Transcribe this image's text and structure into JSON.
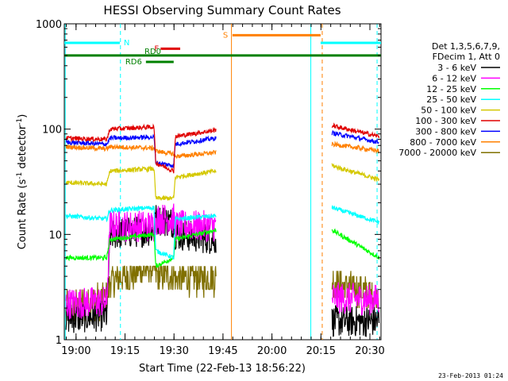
{
  "chart_data": {
    "type": "line",
    "title": "HESSI Observing Summary Count Rates",
    "xlabel": "Start Time (22-Feb-13 18:56:22)",
    "ylabel": "Count Rate (s⁻¹ detector⁻¹)",
    "ylabel_parts": {
      "main": "Count Rate (s",
      "sup1": "-1",
      "mid": " detector",
      "sup2": "-1",
      "end": ")"
    },
    "yscale": "log",
    "ylim": [
      1,
      1000
    ],
    "xlim_minutes": [
      0,
      97
    ],
    "x_ticks": [
      {
        "label": "19:00",
        "t": 3.6
      },
      {
        "label": "19:15",
        "t": 18.6
      },
      {
        "label": "19:30",
        "t": 33.6
      },
      {
        "label": "19:45",
        "t": 48.6
      },
      {
        "label": "20:00",
        "t": 63.6
      },
      {
        "label": "20:15",
        "t": 78.6
      },
      {
        "label": "20:30",
        "t": 93.6
      }
    ],
    "y_ticks": [
      {
        "label": "1",
        "v": 1
      },
      {
        "label": "10",
        "v": 10
      },
      {
        "label": "100",
        "v": 100
      },
      {
        "label": "1000",
        "v": 1000
      }
    ],
    "legend_header": [
      "Det 1,3,5,6,7,9,",
      "FDecim 1, Att 0"
    ],
    "series": [
      {
        "name": "3 - 6 keV",
        "color": "#000000"
      },
      {
        "name": "6 - 12 keV",
        "color": "#ff00ff"
      },
      {
        "name": "12 - 25 keV",
        "color": "#00ff00"
      },
      {
        "name": "25 - 50 keV",
        "color": "#00ffff"
      },
      {
        "name": "50 - 100 keV",
        "color": "#d4c800"
      },
      {
        "name": "100 - 300 keV",
        "color": "#e00000"
      },
      {
        "name": "300 - 800 keV",
        "color": "#0000ff"
      },
      {
        "name": "800 - 7000 keV",
        "color": "#ff8000"
      },
      {
        "name": "7000 - 20000 keV",
        "color": "#807000"
      }
    ],
    "segments": [
      {
        "t0": 0.5,
        "t1": 46.5
      },
      {
        "t0": 82.0,
        "t1": 96.5
      }
    ],
    "flags": [
      {
        "label": "N",
        "t0": 0,
        "t1": 17,
        "v": 660,
        "color": "#00ffff"
      },
      {
        "label": "F",
        "t0": 29.5,
        "t1": 35.5,
        "v": 580,
        "color": "#e00000"
      },
      {
        "label": "RD0",
        "t0": 0,
        "t1": 97,
        "v": 500,
        "color": "#008000"
      },
      {
        "label": "RD6",
        "t0": 25,
        "t1": 33.5,
        "v": 435,
        "color": "#008000"
      },
      {
        "label": "S",
        "t0": 51.5,
        "t1": 78.5,
        "v": 780,
        "color": "#ff8000"
      },
      {
        "label": "",
        "t0": 78.5,
        "t1": 97,
        "v": 660,
        "color": "#00ffff"
      }
    ],
    "vertical_markers": [
      {
        "t": 0.3,
        "color": "#00ffff",
        "style": "solid"
      },
      {
        "t": 17.2,
        "color": "#00ffff",
        "style": "dashed"
      },
      {
        "t": 51.2,
        "color": "#ff8000",
        "style": "solid"
      },
      {
        "t": 75.5,
        "color": "#00ffff",
        "style": "solid"
      },
      {
        "t": 79.0,
        "color": "#ff8000",
        "style": "dashed"
      },
      {
        "t": 95.8,
        "color": "#00ffff",
        "style": "dashed"
      }
    ],
    "levels": {
      "100 - 300 keV": [
        [
          0.5,
          82
        ],
        [
          13,
          80
        ],
        [
          14,
          100
        ],
        [
          27.5,
          105
        ],
        [
          28,
          48
        ],
        [
          33.5,
          40
        ],
        [
          34,
          85
        ],
        [
          46.5,
          98
        ],
        [
          82,
          108
        ],
        [
          96.5,
          85
        ]
      ],
      "300 - 800 keV": [
        [
          0.5,
          75
        ],
        [
          13,
          72
        ],
        [
          14,
          82
        ],
        [
          27.5,
          84
        ],
        [
          28,
          48
        ],
        [
          33.5,
          45
        ],
        [
          34,
          72
        ],
        [
          46.5,
          82
        ],
        [
          82,
          92
        ],
        [
          96.5,
          75
        ]
      ],
      "800 - 7000 keV": [
        [
          0.5,
          68
        ],
        [
          13,
          65
        ],
        [
          14,
          68
        ],
        [
          27.5,
          66
        ],
        [
          28,
          62
        ],
        [
          33.5,
          58
        ],
        [
          34,
          55
        ],
        [
          46.5,
          60
        ],
        [
          82,
          72
        ],
        [
          96.5,
          62
        ]
      ],
      "50 - 100 keV": [
        [
          0.5,
          31
        ],
        [
          13,
          30
        ],
        [
          14,
          40
        ],
        [
          27.5,
          42
        ],
        [
          28,
          22
        ],
        [
          33.5,
          22
        ],
        [
          34,
          35
        ],
        [
          46.5,
          40
        ],
        [
          82,
          45
        ],
        [
          96.5,
          33
        ]
      ],
      "25 - 50 keV": [
        [
          0.5,
          15
        ],
        [
          13,
          14
        ],
        [
          14,
          17
        ],
        [
          27.5,
          18
        ],
        [
          28,
          7
        ],
        [
          33.5,
          6
        ],
        [
          34,
          14
        ],
        [
          46.5,
          15
        ],
        [
          82,
          18
        ],
        [
          96.5,
          13
        ]
      ],
      "12 - 25 keV": [
        [
          0.5,
          6
        ],
        [
          13,
          6
        ],
        [
          14,
          9
        ],
        [
          27.5,
          10
        ],
        [
          28,
          5
        ],
        [
          33.5,
          6
        ],
        [
          34,
          9
        ],
        [
          46.5,
          11
        ],
        [
          82,
          11
        ],
        [
          96.5,
          6
        ]
      ],
      "6 - 12 keV": [
        [
          0.5,
          2.2
        ],
        [
          13,
          2.3
        ],
        [
          14,
          12
        ],
        [
          27.5,
          12
        ],
        [
          28,
          14
        ],
        [
          33.5,
          14
        ],
        [
          34,
          12
        ],
        [
          46.5,
          12
        ],
        [
          82,
          2.5
        ],
        [
          96.5,
          2.4
        ]
      ],
      "3 - 6 keV": [
        [
          0.5,
          1.6
        ],
        [
          13,
          1.7
        ],
        [
          14,
          10
        ],
        [
          27.5,
          11
        ],
        [
          28,
          14
        ],
        [
          33.5,
          13
        ],
        [
          34,
          10
        ],
        [
          46.5,
          9
        ],
        [
          82,
          1.5
        ],
        [
          96.5,
          1.5
        ]
      ],
      "7000 - 20000 keV": [
        [
          0.5,
          2.0
        ],
        [
          13,
          2.5
        ],
        [
          14,
          3.6
        ],
        [
          27.5,
          5.0
        ],
        [
          28,
          4.2
        ],
        [
          33.5,
          4.0
        ],
        [
          34,
          3.8
        ],
        [
          46.5,
          3.8
        ],
        [
          82,
          3.6
        ],
        [
          96.5,
          2.5
        ]
      ]
    },
    "grid": false,
    "legend_position": "right"
  },
  "footer_timestamp": "23-Feb-2013 01:24"
}
